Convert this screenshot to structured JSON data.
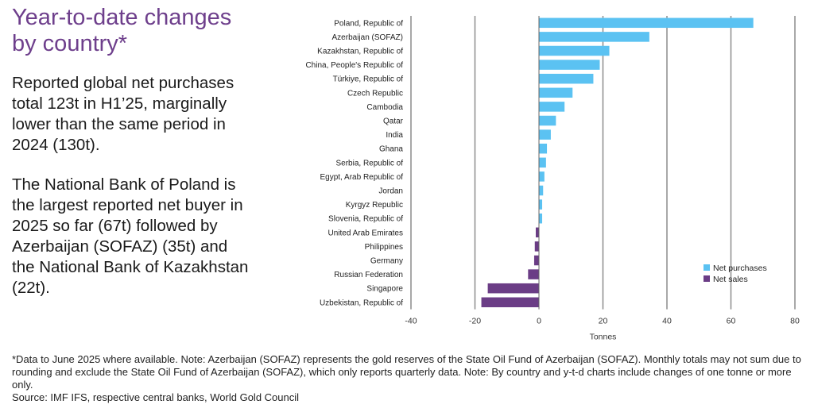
{
  "heading": "Year-to-date changes by country*",
  "paragraphs": [
    "Reported global net purchases total 123t in H1’25, marginally lower than the same period in 2024 (130t).",
    "The National Bank of Poland is the largest reported net buyer in 2025 so far (67t) followed by Azerbaijan (SOFAZ) (35t) and the National Bank of Kazakhstan (22t)."
  ],
  "footnote": {
    "note": "*Data to June 2025 where available. Note: Azerbaijan (SOFAZ) represents the gold reserves of the State Oil Fund of Azerbaijan (SOFAZ). Monthly totals may not sum due to rounding and exclude the State Oil Fund of Azerbaijan (SOFAZ), which only reports quarterly data. Note: By country and y-t-d charts include changes of one tonne or more only.",
    "source": "Source: IMF IFS, respective central banks, World Gold Council"
  },
  "colors": {
    "net_purchases": "#5bc2f2",
    "net_sales": "#6b3d86",
    "heading": "#6e3f8c",
    "grid": "#8c8c8c"
  },
  "chart_data": {
    "type": "bar",
    "orientation": "horizontal",
    "xlabel": "Tonnes",
    "xlim": [
      -40,
      80
    ],
    "xticks": [
      -40,
      -20,
      0,
      20,
      40,
      60,
      80
    ],
    "grid": "vertical",
    "legend_position": "bottom-right",
    "categories": [
      "Poland, Republic of",
      "Azerbaijan (SOFAZ)",
      "Kazakhstan, Republic of",
      "China, People's Republic of",
      "Türkiye, Republic of",
      "Czech Republic",
      "Cambodia",
      "Qatar",
      "India",
      "Ghana",
      "Serbia, Republic of",
      "Egypt, Arab Republic of",
      "Jordan",
      "Kyrgyz Republic",
      "Slovenia, Republic of",
      "United Arab Emirates",
      "Philippines",
      "Germany",
      "Russian Federation",
      "Singapore",
      "Uzbekistan, Republic of"
    ],
    "values": [
      67,
      34.5,
      22,
      19,
      17,
      10.5,
      8,
      5.3,
      3.7,
      2.5,
      2.2,
      1.7,
      1.3,
      1.0,
      1.0,
      -1.0,
      -1.3,
      -1.5,
      -3.4,
      -16,
      -18
    ],
    "legend": [
      "Net purchases",
      "Net sales"
    ]
  }
}
